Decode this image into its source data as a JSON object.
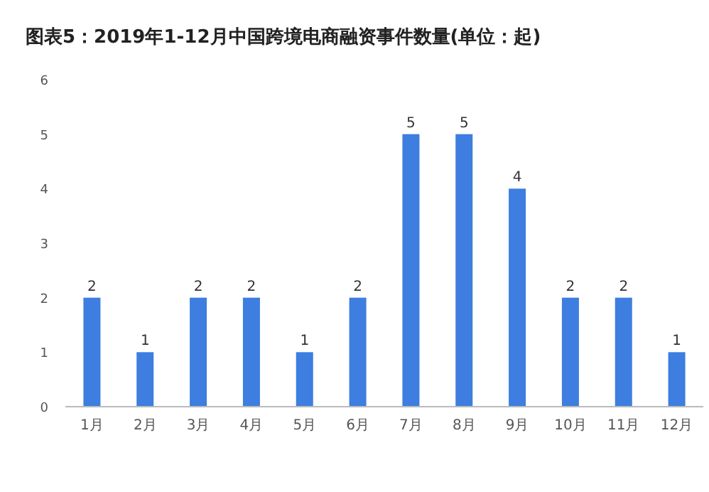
{
  "chart_data": {
    "type": "bar",
    "title": "图表5：2019年1-12月中国跨境电商融资事件数量(单位：起)",
    "categories": [
      "1月",
      "2月",
      "3月",
      "4月",
      "5月",
      "6月",
      "7月",
      "8月",
      "9月",
      "10月",
      "11月",
      "12月"
    ],
    "values": [
      2,
      1,
      2,
      2,
      1,
      2,
      5,
      5,
      4,
      2,
      2,
      1
    ],
    "color": "#3d7ee0",
    "ylim": [
      0,
      6
    ],
    "yticks": [
      0,
      1,
      2,
      3,
      4,
      5,
      6
    ],
    "grid": false,
    "data_labels": true
  }
}
